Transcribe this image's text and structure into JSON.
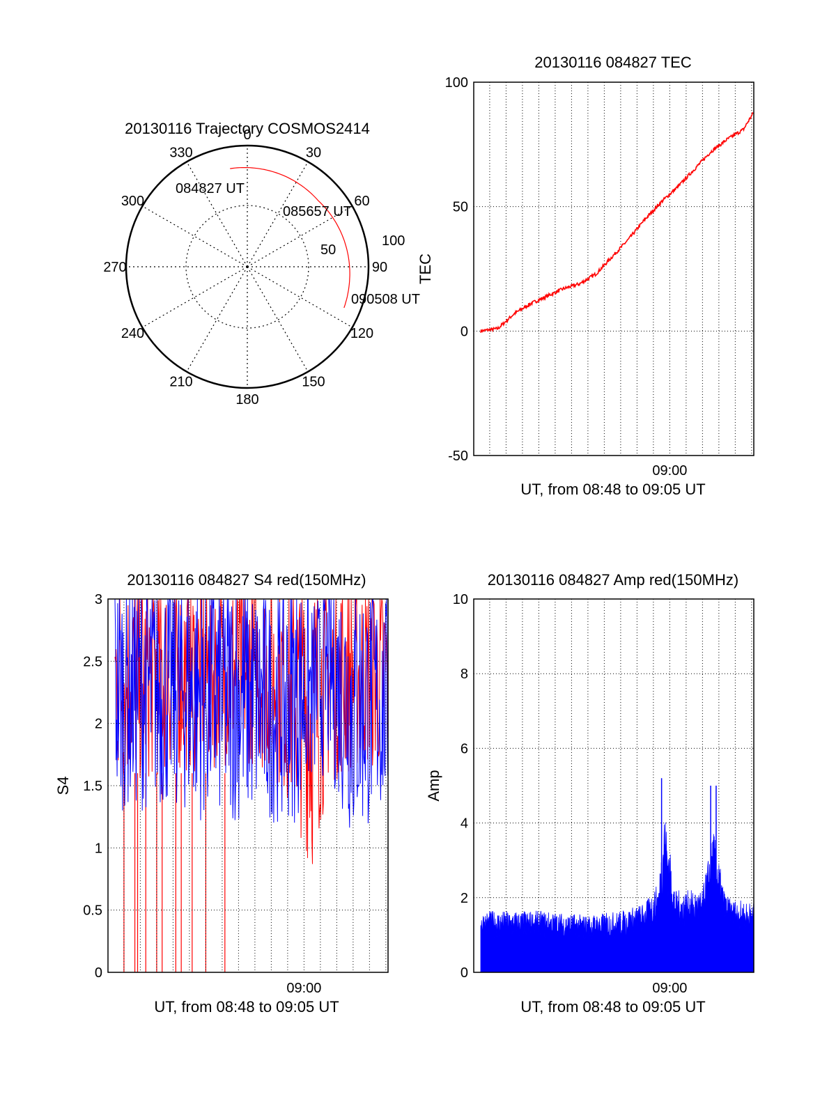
{
  "colors": {
    "tec_line": "#ff0000",
    "s4_red": "#ff0000",
    "s4_blue": "#0000ff",
    "amp_fill": "#0000ff",
    "trajectory": "#ff0000",
    "grid": "#000000"
  },
  "chart_data": [
    {
      "id": "polar",
      "type": "scatter",
      "subtype": "polar-sky-trajectory",
      "title": "20130116 Trajectory COSMOS2414",
      "azimuth_labels": [
        "0",
        "30",
        "60",
        "90",
        "120",
        "150",
        "180",
        "210",
        "240",
        "270",
        "300",
        "330"
      ],
      "radial_labels": [
        "50",
        "100"
      ],
      "elevation_rings": [
        50
      ],
      "grid": true,
      "points": [
        {
          "time": "084827 UT",
          "az": 350,
          "el": 16
        },
        {
          "time": "085657 UT",
          "az": 47,
          "el": 18
        },
        {
          "time": "090508 UT",
          "az": 113,
          "el": 12
        }
      ],
      "labels": {
        "start": "084827 UT",
        "mid": "085657 UT",
        "end": "090508 UT"
      }
    },
    {
      "id": "tec",
      "type": "line",
      "title": "20130116 084827 TEC",
      "xlabel": "UT, from 08:48 to 09:05 UT",
      "ylabel": "TEC",
      "xlim": [
        "08:48:27",
        "09:05:08"
      ],
      "ylim": [
        -50,
        100
      ],
      "yticks": [
        "100",
        "50",
        "0",
        "-50"
      ],
      "xticks": [
        {
          "label": "09:00",
          "time": "09:00:00"
        }
      ],
      "minute_grid": true,
      "series": [
        {
          "x": [
            "08:48:27",
            "08:49:30",
            "08:50:30",
            "08:51:30",
            "08:52:30",
            "08:53:30",
            "08:54:30",
            "08:55:30",
            "08:56:30",
            "08:57:30",
            "08:58:30",
            "08:59:30",
            "09:00:30",
            "09:01:30",
            "09:02:30",
            "09:03:30",
            "09:04:30",
            "09:05:08"
          ],
          "y": [
            0,
            1,
            7,
            11,
            14,
            17,
            19,
            23,
            30,
            37,
            45,
            52,
            58,
            65,
            72,
            77,
            81,
            88
          ]
        }
      ]
    },
    {
      "id": "s4",
      "type": "line",
      "title": "20130116 084827 S4 red(150MHz)",
      "xlabel": "UT, from 08:48 to 09:05 UT",
      "ylabel": "S4",
      "xlim": [
        "08:48:27",
        "09:05:08"
      ],
      "ylim": [
        0,
        3
      ],
      "yticks": [
        "3",
        "2.5",
        "2",
        "1.5",
        "1",
        "0.5",
        "0"
      ],
      "xticks": [
        {
          "label": "09:00",
          "time": "09:00:00"
        }
      ],
      "minute_grid": true,
      "series": [
        {
          "color": "red",
          "envelope_x": [
            "08:48:27",
            "08:50:00",
            "08:52:00",
            "08:54:00",
            "08:56:00",
            "08:58:00",
            "08:59:30",
            "09:00:30",
            "09:01:30",
            "09:03:00",
            "09:05:08"
          ],
          "envelope_lo": [
            1.5,
            1.5,
            1.6,
            1.6,
            1.7,
            1.6,
            1.2,
            0.8,
            1.5,
            1.6,
            1.6
          ],
          "envelope_hi": [
            3,
            3,
            3,
            3,
            3,
            3,
            3,
            3,
            3,
            3,
            3
          ],
          "drop_to_zero_at": [
            "08:49:00",
            "08:49:40",
            "08:49:50",
            "08:50:20",
            "08:51:00",
            "08:51:20",
            "08:52:10",
            "08:52:30",
            "08:53:10",
            "08:54:00",
            "08:55:10"
          ]
        },
        {
          "color": "blue",
          "envelope_x": [
            "08:48:27",
            "08:50:00",
            "08:52:00",
            "08:54:00",
            "08:56:00",
            "08:58:00",
            "08:59:30",
            "09:00:30",
            "09:01:30",
            "09:03:00",
            "09:05:08"
          ],
          "envelope_lo": [
            1.3,
            1.3,
            1.3,
            1.2,
            1.2,
            1.2,
            1.2,
            1.5,
            1.6,
            1.0,
            1.3
          ],
          "envelope_hi": [
            3,
            3,
            3,
            3,
            3,
            2.8,
            3,
            2.8,
            3,
            3,
            2.8
          ]
        }
      ]
    },
    {
      "id": "amp",
      "type": "area",
      "title": "20130116 084827 Amp red(150MHz)",
      "xlabel": "UT, from 08:48 to 09:05 UT",
      "ylabel": "Amp",
      "xlim": [
        "08:48:27",
        "09:05:08"
      ],
      "ylim": [
        0,
        10
      ],
      "yticks": [
        "10",
        "8",
        "6",
        "4",
        "2",
        "0"
      ],
      "xticks": [
        {
          "label": "09:00",
          "time": "09:00:00"
        }
      ],
      "minute_grid": true,
      "series": [
        {
          "base_x": [
            "08:48:27",
            "08:52:00",
            "08:55:00",
            "08:57:00",
            "08:58:30",
            "08:59:20",
            "08:59:40",
            "09:00:20",
            "09:01:00",
            "09:02:00",
            "09:02:40",
            "09:03:20",
            "09:03:40",
            "09:05:08"
          ],
          "base_y": [
            1.5,
            1.5,
            1.4,
            1.5,
            1.7,
            2.2,
            4.0,
            2.0,
            2.0,
            2.0,
            3.5,
            2.0,
            1.8,
            1.7
          ],
          "spikes": [
            {
              "time": "08:59:30",
              "value": 5.2
            },
            {
              "time": "09:02:30",
              "value": 5.0
            },
            {
              "time": "09:02:50",
              "value": 5.0
            }
          ]
        }
      ]
    }
  ]
}
